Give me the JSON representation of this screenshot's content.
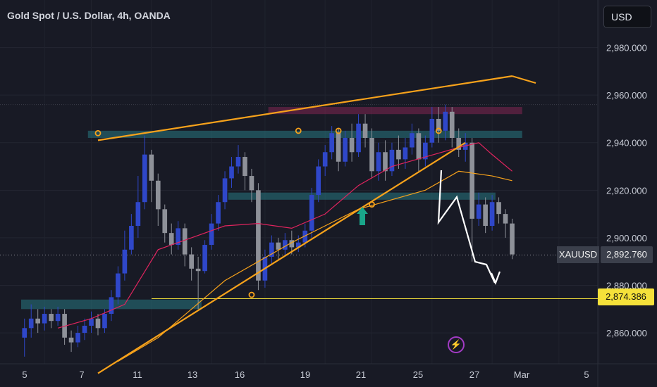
{
  "header": {
    "title": "Gold Spot / U.S. Dollar, 4h, OANDA"
  },
  "toolbar": {
    "currency_label": "USD"
  },
  "tags": {
    "symbol": "XAUUSD",
    "last_price": "2,892.760",
    "level_price": "2,874.386"
  },
  "colors": {
    "background": "#181a25",
    "bull": "#2f47c9",
    "bear": "#8e9199",
    "trendline": "#f7a21b",
    "ma_fast": "#e0245e",
    "ma_slow": "#f7a21b",
    "zone": "#1f5a66",
    "level": "#f5e13a",
    "arrow": "#1aa58a"
  },
  "icons": {
    "flash": "lightning-icon",
    "up_arrow": "arrow-up-icon"
  },
  "chart_data": {
    "type": "candlestick",
    "title": "Gold Spot / U.S. Dollar, 4h, OANDA",
    "y_ticks": [
      2860,
      2880,
      2900,
      2920,
      2940,
      2960,
      2980
    ],
    "y_tick_labels": [
      "2,860.000",
      "2,880.000",
      "2,900.000",
      "2,920.000",
      "2,940.000",
      "2,960.000",
      "2,980.000"
    ],
    "ylim": [
      2847,
      3000
    ],
    "x_ticks": [
      "5",
      "7",
      "11",
      "13",
      "16",
      "19",
      "21",
      "25",
      "27",
      "Mar",
      "5"
    ],
    "bars_count": 86,
    "candles": [
      [
        2858,
        2862,
        2850,
        2866
      ],
      [
        2862,
        2866,
        2858,
        2872
      ],
      [
        2866,
        2864,
        2860,
        2870
      ],
      [
        2864,
        2868,
        2861,
        2871
      ],
      [
        2868,
        2865,
        2862,
        2870
      ],
      [
        2865,
        2868,
        2863,
        2871
      ],
      [
        2868,
        2858,
        2855,
        2870
      ],
      [
        2858,
        2856,
        2852,
        2861
      ],
      [
        2856,
        2860,
        2854,
        2863
      ],
      [
        2860,
        2863,
        2857,
        2866
      ],
      [
        2863,
        2866,
        2860,
        2869
      ],
      [
        2866,
        2862,
        2859,
        2868
      ],
      [
        2862,
        2868,
        2860,
        2870
      ],
      [
        2868,
        2875,
        2865,
        2878
      ],
      [
        2875,
        2885,
        2872,
        2888
      ],
      [
        2885,
        2895,
        2882,
        2903
      ],
      [
        2895,
        2905,
        2893,
        2910
      ],
      [
        2905,
        2915,
        2900,
        2926
      ],
      [
        2915,
        2935,
        2912,
        2943
      ],
      [
        2935,
        2924,
        2915,
        2937
      ],
      [
        2924,
        2912,
        2905,
        2927
      ],
      [
        2912,
        2902,
        2898,
        2914
      ],
      [
        2902,
        2897,
        2893,
        2906
      ],
      [
        2897,
        2904,
        2895,
        2907
      ],
      [
        2904,
        2893,
        2888,
        2906
      ],
      [
        2893,
        2887,
        2882,
        2896
      ],
      [
        2887,
        2886,
        2870,
        2892
      ],
      [
        2886,
        2897,
        2885,
        2899
      ],
      [
        2897,
        2906,
        2895,
        2910
      ],
      [
        2906,
        2915,
        2903,
        2918
      ],
      [
        2915,
        2925,
        2912,
        2928
      ],
      [
        2925,
        2930,
        2921,
        2934
      ],
      [
        2930,
        2934,
        2927,
        2939
      ],
      [
        2934,
        2926,
        2920,
        2936
      ],
      [
        2926,
        2920,
        2915,
        2929
      ],
      [
        2920,
        2882,
        2878,
        2923
      ],
      [
        2882,
        2892,
        2879,
        2895
      ],
      [
        2892,
        2898,
        2889,
        2901
      ],
      [
        2898,
        2895,
        2891,
        2900
      ],
      [
        2895,
        2899,
        2892,
        2902
      ],
      [
        2899,
        2896,
        2893,
        2903
      ],
      [
        2896,
        2898,
        2894,
        2901
      ],
      [
        2898,
        2903,
        2896,
        2906
      ],
      [
        2903,
        2918,
        2900,
        2921
      ],
      [
        2918,
        2930,
        2915,
        2933
      ],
      [
        2930,
        2936,
        2926,
        2939
      ],
      [
        2936,
        2944,
        2933,
        2947
      ],
      [
        2944,
        2932,
        2928,
        2946
      ],
      [
        2932,
        2942,
        2930,
        2945
      ],
      [
        2942,
        2936,
        2932,
        2948
      ],
      [
        2936,
        2948,
        2934,
        2952
      ],
      [
        2948,
        2942,
        2938,
        2952
      ],
      [
        2942,
        2928,
        2925,
        2946
      ],
      [
        2928,
        2936,
        2924,
        2940
      ],
      [
        2936,
        2928,
        2924,
        2941
      ],
      [
        2928,
        2937,
        2926,
        2940
      ],
      [
        2937,
        2933,
        2929,
        2943
      ],
      [
        2933,
        2938,
        2929,
        2942
      ],
      [
        2938,
        2944,
        2935,
        2948
      ],
      [
        2944,
        2933,
        2928,
        2946
      ],
      [
        2933,
        2940,
        2930,
        2943
      ],
      [
        2940,
        2950,
        2938,
        2955
      ],
      [
        2950,
        2945,
        2940,
        2955
      ],
      [
        2945,
        2953,
        2941,
        2956
      ],
      [
        2953,
        2942,
        2938,
        2955
      ],
      [
        2942,
        2937,
        2934,
        2946
      ],
      [
        2937,
        2940,
        2932,
        2944
      ],
      [
        2940,
        2908,
        2890,
        2942
      ],
      [
        2908,
        2914,
        2905,
        2919
      ],
      [
        2914,
        2905,
        2902,
        2917
      ],
      [
        2905,
        2915,
        2903,
        2918
      ],
      [
        2915,
        2910,
        2906,
        2917
      ],
      [
        2910,
        2906,
        2900,
        2912
      ],
      [
        2906,
        2893,
        2891,
        2908
      ]
    ],
    "ma_fast": [
      [
        5,
        2862
      ],
      [
        10,
        2866
      ],
      [
        15,
        2872
      ],
      [
        20,
        2895
      ],
      [
        25,
        2900
      ],
      [
        30,
        2905
      ],
      [
        35,
        2906
      ],
      [
        40,
        2904
      ],
      [
        45,
        2910
      ],
      [
        50,
        2922
      ],
      [
        55,
        2930
      ],
      [
        60,
        2934
      ],
      [
        65,
        2938
      ],
      [
        68,
        2940
      ],
      [
        70,
        2935
      ],
      [
        73,
        2928
      ]
    ],
    "ma_slow": [
      [
        14,
        2848
      ],
      [
        20,
        2858
      ],
      [
        25,
        2870
      ],
      [
        30,
        2882
      ],
      [
        35,
        2890
      ],
      [
        40,
        2898
      ],
      [
        45,
        2905
      ],
      [
        50,
        2912
      ],
      [
        55,
        2916
      ],
      [
        60,
        2920
      ],
      [
        65,
        2928
      ],
      [
        70,
        2926
      ],
      [
        73,
        2924
      ]
    ],
    "trendlines": [
      {
        "x1": 11,
        "y1": 2941,
        "x2": 73,
        "y2": 2968
      },
      {
        "x1": 11,
        "y1": 2843,
        "x2": 66,
        "y2": 2940
      },
      {
        "x1": 20,
        "y1": 2877.5,
        "x2": 86,
        "y2": 2877.5
      }
    ],
    "zones": [
      {
        "x1": 0,
        "x2": 27,
        "y1": 2870,
        "y2": 2874
      },
      {
        "x1": 10,
        "x2": 75,
        "y1": 2942,
        "y2": 2945
      },
      {
        "x1": 31,
        "x2": 71,
        "y1": 2916,
        "y2": 2919
      },
      {
        "x1": 37,
        "x2": 75,
        "y1": 2952,
        "y2": 2955
      }
    ],
    "level_line": 2874.386,
    "last_price": 2892.76
  }
}
